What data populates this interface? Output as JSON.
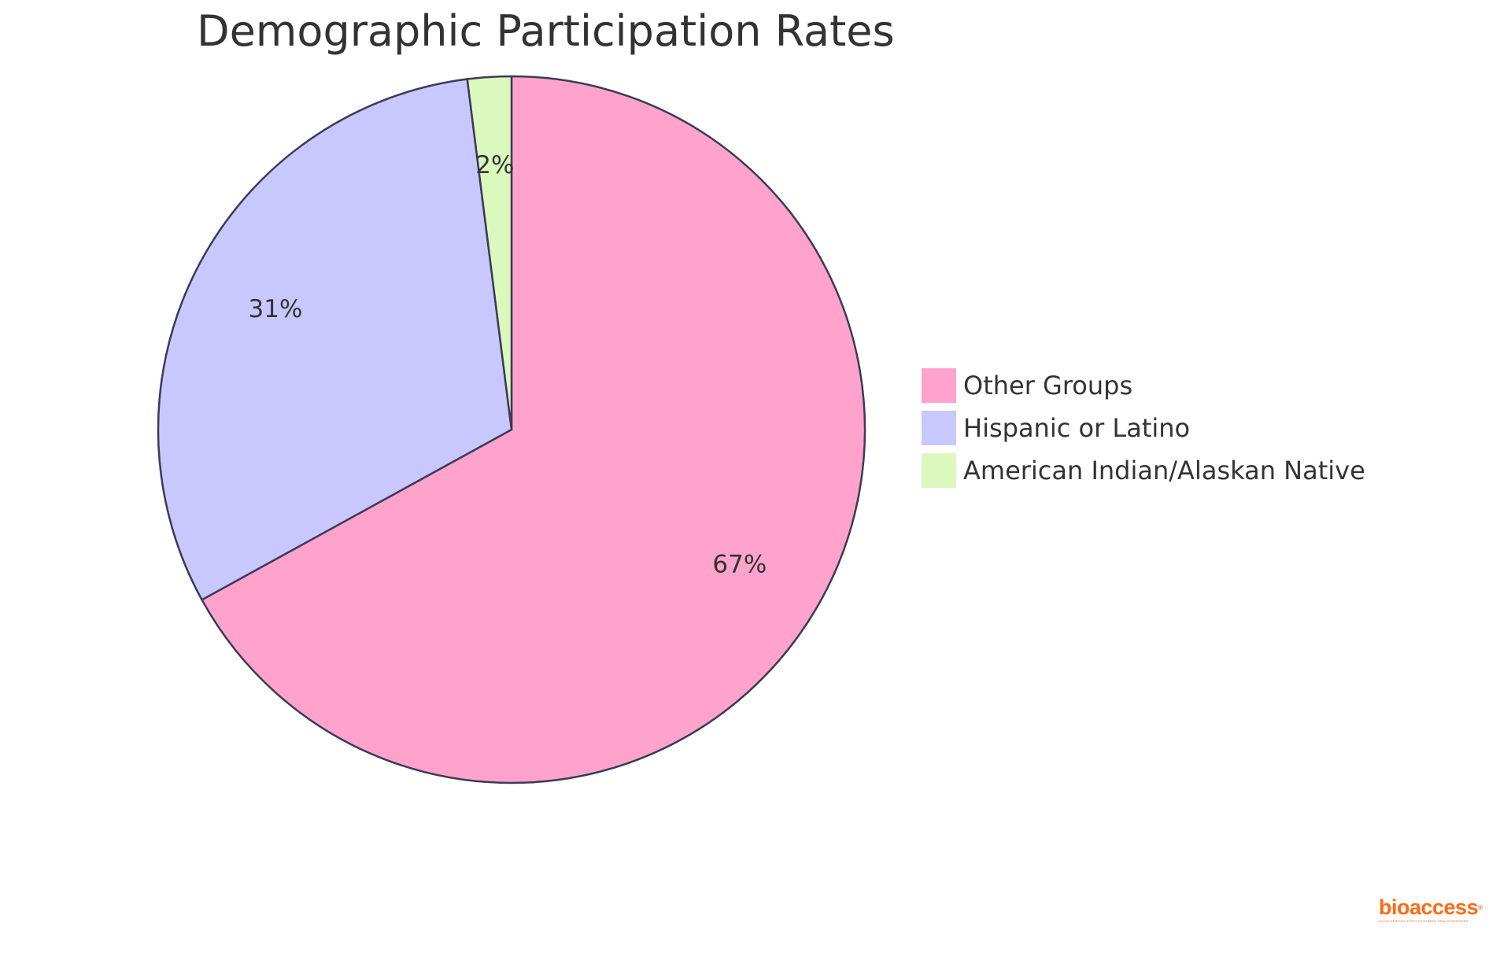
{
  "chart_data": {
    "type": "pie",
    "title": "Demographic Participation Rates",
    "slices": [
      {
        "label": "Other Groups",
        "value": 67,
        "display": "67%",
        "color": "#ffa3cc"
      },
      {
        "label": "Hispanic or Latino",
        "value": 31,
        "display": "31%",
        "color": "#c8c8ff"
      },
      {
        "label": "American Indian/Alaskan Native",
        "value": 2,
        "display": "2%",
        "color": "#dcf9bd"
      }
    ],
    "legend_position": "right",
    "stroke_color": "#3b3a57"
  },
  "logo": {
    "name": "bioaccess",
    "tagline": "ACCELERATING FIRST-IN-HUMAN TRIALS NETWORK",
    "color": "#ff6a13"
  }
}
